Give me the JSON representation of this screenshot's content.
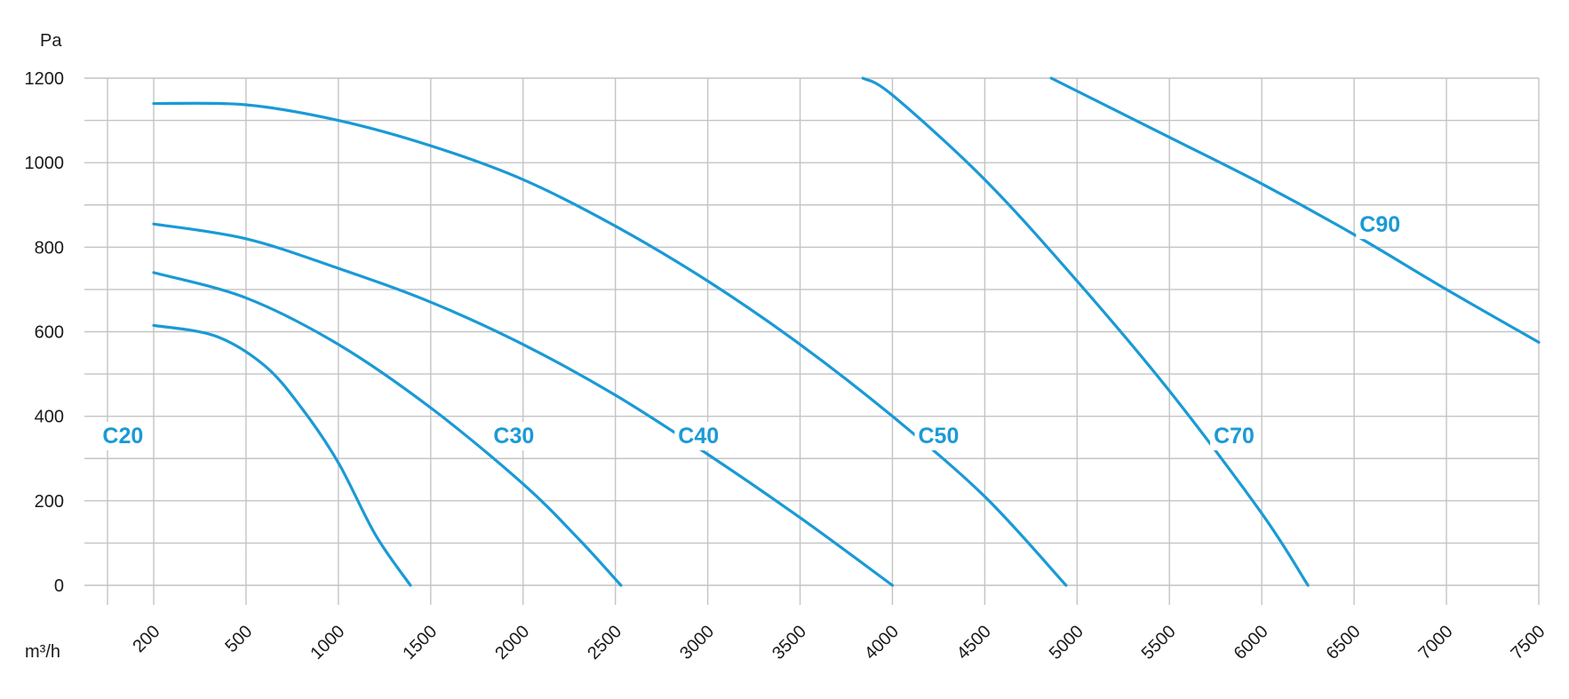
{
  "chart_data": {
    "type": "line",
    "ylabel": "Pa",
    "xlabel": "m³/h",
    "x_ticks": [
      200,
      500,
      1000,
      1500,
      2000,
      2500,
      3000,
      3500,
      4000,
      4500,
      5000,
      5500,
      6000,
      6500,
      7000,
      7500
    ],
    "y_ticks": [
      0,
      200,
      400,
      600,
      800,
      1000,
      1200
    ],
    "xlim": [
      0,
      7500
    ],
    "ylim": [
      0,
      1200
    ],
    "grid": true,
    "accent_color": "#1a9ad6",
    "grid_color": "#c4c4c4",
    "series": [
      {
        "name": "C20",
        "label_at": [
          100,
          350
        ],
        "points": [
          [
            200,
            615
          ],
          [
            400,
            590
          ],
          [
            600,
            520
          ],
          [
            800,
            420
          ],
          [
            1000,
            290
          ],
          [
            1200,
            120
          ],
          [
            1390,
            0
          ]
        ]
      },
      {
        "name": "C30",
        "label_at": [
          1950,
          350
        ],
        "points": [
          [
            200,
            740
          ],
          [
            500,
            680
          ],
          [
            1000,
            570
          ],
          [
            1500,
            420
          ],
          [
            2000,
            240
          ],
          [
            2300,
            110
          ],
          [
            2530,
            0
          ]
        ]
      },
      {
        "name": "C40",
        "label_at": [
          2950,
          350
        ],
        "points": [
          [
            200,
            855
          ],
          [
            500,
            820
          ],
          [
            1000,
            750
          ],
          [
            1500,
            670
          ],
          [
            2000,
            570
          ],
          [
            2500,
            450
          ],
          [
            3000,
            310
          ],
          [
            3500,
            160
          ],
          [
            4000,
            0
          ]
        ]
      },
      {
        "name": "C50",
        "label_at": [
          4250,
          350
        ],
        "points": [
          [
            200,
            1140
          ],
          [
            500,
            1137
          ],
          [
            1000,
            1100
          ],
          [
            1500,
            1040
          ],
          [
            2000,
            960
          ],
          [
            2500,
            850
          ],
          [
            3000,
            720
          ],
          [
            3500,
            570
          ],
          [
            4000,
            400
          ],
          [
            4500,
            210
          ],
          [
            4940,
            0
          ]
        ]
      },
      {
        "name": "C70",
        "label_at": [
          5850,
          350
        ],
        "points": [
          [
            3840,
            1200
          ],
          [
            4000,
            1160
          ],
          [
            4500,
            960
          ],
          [
            5000,
            720
          ],
          [
            5500,
            460
          ],
          [
            6000,
            170
          ],
          [
            6250,
            0
          ]
        ]
      },
      {
        "name": "C90",
        "label_at": [
          6640,
          850
        ],
        "points": [
          [
            4860,
            1200
          ],
          [
            5500,
            1060
          ],
          [
            6000,
            950
          ],
          [
            6500,
            830
          ],
          [
            7000,
            700
          ],
          [
            7500,
            575
          ]
        ]
      }
    ]
  }
}
